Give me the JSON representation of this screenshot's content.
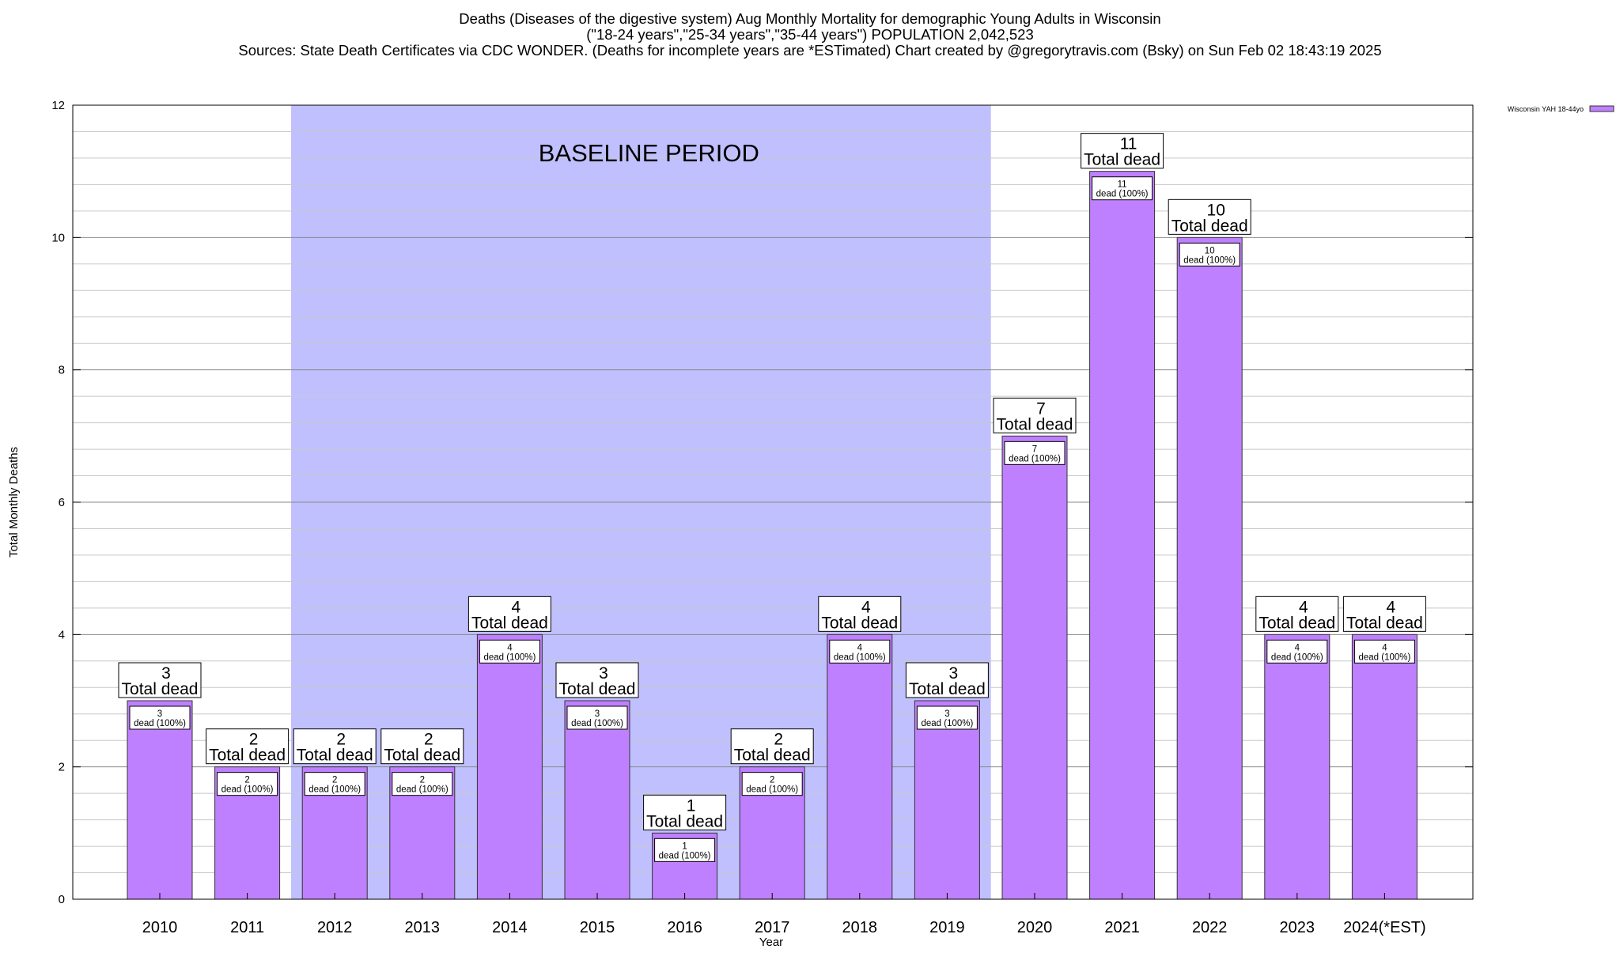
{
  "chart_data": {
    "type": "bar",
    "title_lines": [
      "Deaths (Diseases of the digestive system) Aug Monthly Mortality for demographic Young Adults in Wisconsin",
      "(\"18-24 years\",\"25-34 years\",\"35-44 years\") POPULATION 2,042,523",
      "Sources: State Death Certificates via CDC WONDER. (Deaths for incomplete years are *ESTimated)                Chart created by @gregorytravis.com (Bsky) on Sun Feb 02 18:43:19 2025"
    ],
    "xlabel": "Year",
    "ylabel": "Total Monthly Deaths",
    "ylim": [
      0,
      12
    ],
    "yticks": [
      0,
      2,
      4,
      6,
      8,
      10,
      12
    ],
    "minor_grid_step": 0.4,
    "grid": true,
    "legend": {
      "label": "Wisconsin YAH 18-44yo",
      "placement": "top-right"
    },
    "categories": [
      "2010",
      "2011",
      "2012",
      "2013",
      "2014",
      "2015",
      "2016",
      "2017",
      "2018",
      "2019",
      "2020",
      "2021",
      "2022",
      "2023",
      "2024(*EST)"
    ],
    "series": [
      {
        "name": "Wisconsin YAH 18-44yo",
        "values": [
          3,
          2,
          2,
          2,
          4,
          3,
          1,
          2,
          4,
          3,
          7,
          11,
          10,
          4,
          4
        ],
        "color": "#bf80ff"
      }
    ],
    "total_label_suffix": "Total dead",
    "inner_label_suffix": "dead (100%)",
    "baseline": {
      "label": "BASELINE PERIOD",
      "from": "2012",
      "to": "2019",
      "color": "#c0c0ff"
    }
  }
}
